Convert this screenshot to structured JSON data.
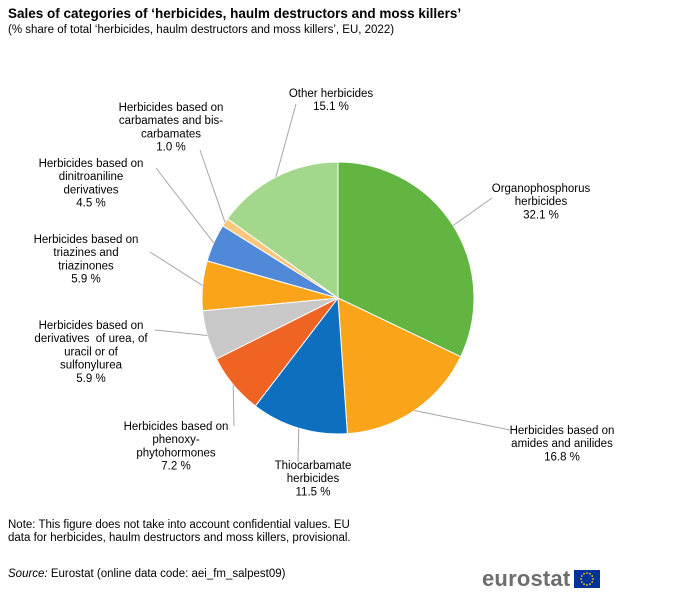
{
  "header": {
    "title": "Sales of categories of ‘herbicides, haulm destructors and moss killers’",
    "subtitle": "(% share of total ‘herbicides, haulm destructors and moss killers’, EU, 2022)"
  },
  "chart_data": {
    "type": "pie",
    "title": "Sales of categories of ‘herbicides, haulm destructors and moss killers’",
    "subtitle": "(% share of total ‘herbicides, haulm destructors and moss killers’, EU, 2022)",
    "unit": "%",
    "slices": [
      {
        "label_lines": [
          "Organophosphorus",
          "herbicides"
        ],
        "value": 32.1,
        "value_text": "32.1 %",
        "color": "#62b541"
      },
      {
        "label_lines": [
          "Herbicides based on",
          "amides and anilides"
        ],
        "value": 16.8,
        "value_text": "16.8 %",
        "color": "#faa41a"
      },
      {
        "label_lines": [
          "Thiocarbamate",
          "herbicides"
        ],
        "value": 11.5,
        "value_text": "11.5 %",
        "color": "#0e6fc1"
      },
      {
        "label_lines": [
          "Herbicides based on",
          "phenoxy-",
          "phytohormones"
        ],
        "value": 7.2,
        "value_text": "7.2 %",
        "color": "#f06423"
      },
      {
        "label_lines": [
          "Herbicides based on",
          "derivatives  of urea, of",
          "uracil or of",
          "sulfonylurea"
        ],
        "value": 5.9,
        "value_text": "5.9 %",
        "color": "#c8c8c8"
      },
      {
        "label_lines": [
          "Herbicides based on",
          "triazines and",
          "triazinones"
        ],
        "value": 5.9,
        "value_text": "5.9 %",
        "color": "#faa41a"
      },
      {
        "label_lines": [
          "Herbicides based on",
          "dinitroaniline",
          "derivatives"
        ],
        "value": 4.5,
        "value_text": "4.5 %",
        "color": "#5089d8"
      },
      {
        "label_lines": [
          "Herbicides based on",
          "carbamates and bis-",
          "carbamates"
        ],
        "value": 1.0,
        "value_text": "1.0 %",
        "color": "#fbc87d"
      },
      {
        "label_lines": [
          "Other herbicides"
        ],
        "value": 15.1,
        "value_text": "15.1 %",
        "color": "#a3d78b"
      }
    ]
  },
  "footer": {
    "note": "Note: This figure  does not take into account confidential values. EU data for herbicides, haulm destructors and moss killers, provisional.",
    "source_label": "Source:",
    "source_text": " Eurostat (online data code: aei_fm_salpest09)",
    "logo_text": "eurostat",
    "flag_color": "#003399",
    "star_color": "#ffcc00"
  }
}
